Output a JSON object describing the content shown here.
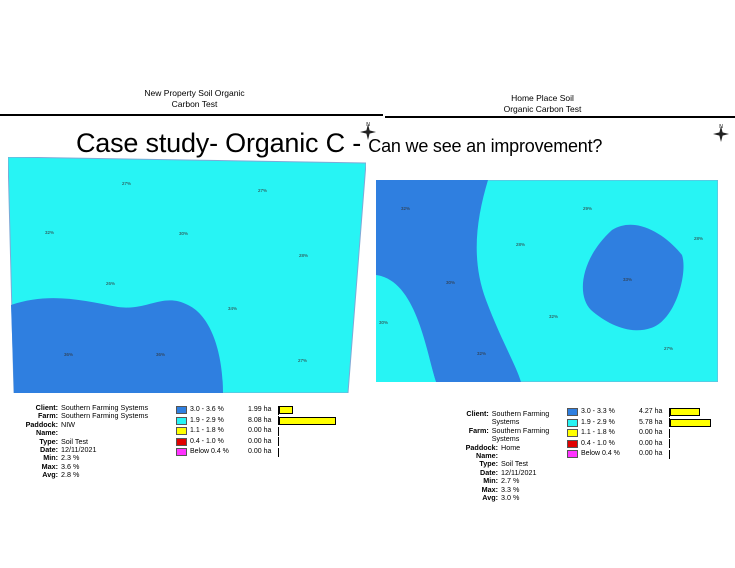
{
  "slide": {
    "headline_main": "Case study- Organic C - ",
    "headline_sub": "Can we see an improvement?"
  },
  "left_map": {
    "title": "New Property Soil Organic Carbon Test",
    "title_line1": "New Property Soil Organic",
    "title_line2": "Carbon Test",
    "labels": [
      "27%",
      "27%",
      "32%",
      "30%",
      "28%",
      "26%",
      "34%",
      "36%",
      "36%",
      "27%"
    ],
    "info": {
      "client_label": "Client:",
      "client": "Southern Farming Systems",
      "farm_label": "Farm:",
      "farm": "Southern Farming Systems",
      "paddock_label": "Paddock:",
      "paddock": "NIW",
      "name_label": "Name:",
      "type_label": "Type:",
      "type": "Soil Test",
      "date_label": "Date:",
      "date": "12/11/2021",
      "min_label": "Min:",
      "min": "2.3 %",
      "max_label": "Max:",
      "max": "3.6 %",
      "avg_label": "Avg:",
      "avg": "2.8 %"
    },
    "legend": [
      {
        "range": "3.0 - 3.6 %",
        "area": "1.99 ha",
        "area_value": 1.99,
        "color": "#2f7fe0"
      },
      {
        "range": "1.9 - 2.9 %",
        "area": "8.08 ha",
        "area_value": 8.08,
        "color": "#27f4f4"
      },
      {
        "range": "1.1 - 1.8 %",
        "area": "0.00 ha",
        "area_value": 0,
        "color": "#ffff00"
      },
      {
        "range": "0.4 - 1.0 %",
        "area": "0.00 ha",
        "area_value": 0,
        "color": "#e00000"
      },
      {
        "range": "Below 0.4 %",
        "area": "0.00 ha",
        "area_value": 0,
        "color": "#ff33ff"
      }
    ]
  },
  "right_map": {
    "title": "Home Place Soil Organic Carbon Test",
    "title_line1": "Home Place Soil",
    "title_line2": "Organic Carbon Test",
    "labels": [
      "32%",
      "29%",
      "28%",
      "28%",
      "30%",
      "33%",
      "30%",
      "32%",
      "32%",
      "27%"
    ],
    "info": {
      "client_label": "Client:",
      "client": "Southern Farming Systems",
      "farm_label": "Farm:",
      "farm": "Southern Farming Systems",
      "paddock_label": "Paddock:",
      "paddock": "Home",
      "name_label": "Name:",
      "type_label": "Type:",
      "type": "Soil Test",
      "date_label": "Date:",
      "date": "12/11/2021",
      "min_label": "Min:",
      "min": "2.7 %",
      "max_label": "Max:",
      "max": "3.3 %",
      "avg_label": "Avg:",
      "avg": "3.0 %"
    },
    "legend": [
      {
        "range": "3.0 - 3.3 %",
        "area": "4.27 ha",
        "area_value": 4.27,
        "color": "#2f7fe0"
      },
      {
        "range": "1.9 - 2.9 %",
        "area": "5.78 ha",
        "area_value": 5.78,
        "color": "#27f4f4"
      },
      {
        "range": "1.1 - 1.8 %",
        "area": "0.00 ha",
        "area_value": 0,
        "color": "#ffff00"
      },
      {
        "range": "0.4 - 1.0 %",
        "area": "0.00 ha",
        "area_value": 0,
        "color": "#e00000"
      },
      {
        "range": "Below 0.4 %",
        "area": "0.00 ha",
        "area_value": 0,
        "color": "#ff33ff"
      }
    ]
  },
  "icons": [
    "north-arrow-icon"
  ]
}
